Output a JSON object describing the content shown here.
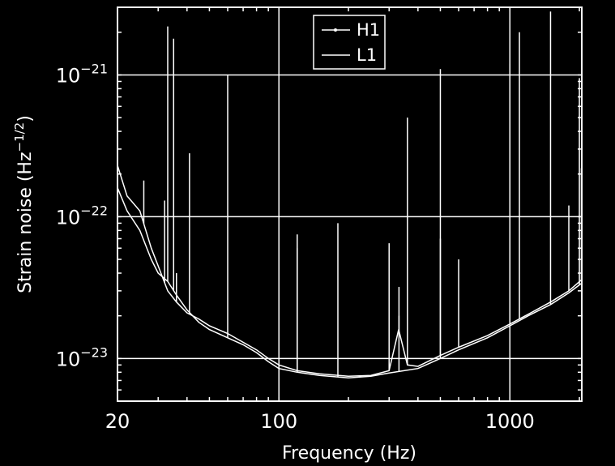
{
  "chart_data": {
    "type": "line",
    "title": "",
    "xlabel": "Frequency (Hz)",
    "ylabel_main": "Strain noise (Hz",
    "ylabel_sup": "−1/2",
    "ylabel_close": ")",
    "x_scale": "log",
    "y_scale": "log",
    "xlim": [
      20,
      2048
    ],
    "ylim": [
      5e-24,
      3e-21
    ],
    "grid": true,
    "legend_position": "top-center",
    "x_ticks": [
      {
        "value": 20,
        "label": "20"
      },
      {
        "value": 100,
        "label": "100"
      },
      {
        "value": 1000,
        "label": "1000"
      }
    ],
    "y_ticks": [
      {
        "value": 1e-23,
        "base": "10",
        "exp": "−23"
      },
      {
        "value": 1e-22,
        "base": "10",
        "exp": "−22"
      },
      {
        "value": 1e-21,
        "base": "10",
        "exp": "−21"
      }
    ],
    "series": [
      {
        "name": "H1",
        "marker": "point",
        "color": "#ffffff",
        "points": [
          [
            20,
            1.6e-22
          ],
          [
            22,
            1.1e-22
          ],
          [
            25,
            8e-23
          ],
          [
            28,
            5e-23
          ],
          [
            30,
            4e-23
          ],
          [
            33,
            3.5e-23
          ],
          [
            36,
            2.8e-23
          ],
          [
            40,
            2.2e-23
          ],
          [
            45,
            1.8e-23
          ],
          [
            50,
            1.6e-23
          ],
          [
            60,
            1.4e-23
          ],
          [
            70,
            1.25e-23
          ],
          [
            80,
            1.1e-23
          ],
          [
            90,
            9.5e-24
          ],
          [
            100,
            8.5e-24
          ],
          [
            120,
            8e-24
          ],
          [
            150,
            7.6e-24
          ],
          [
            200,
            7.3e-24
          ],
          [
            250,
            7.5e-24
          ],
          [
            300,
            7.9e-24
          ],
          [
            400,
            8.5e-24
          ],
          [
            500,
            1e-23
          ],
          [
            600,
            1.15e-23
          ],
          [
            800,
            1.4e-23
          ],
          [
            1000,
            1.7e-23
          ],
          [
            1200,
            2e-23
          ],
          [
            1500,
            2.4e-23
          ],
          [
            1800,
            2.9e-23
          ],
          [
            2048,
            3.4e-23
          ]
        ],
        "lines": [
          [
            33,
            2.2e-21
          ],
          [
            35,
            1.8e-21
          ],
          [
            60,
            1e-21
          ],
          [
            120,
            7.5e-23
          ],
          [
            180,
            9e-23
          ],
          [
            331,
            2e-23
          ],
          [
            500,
            1.1e-21
          ],
          [
            1000,
            1.2e-21
          ],
          [
            1500,
            2.8e-21
          ],
          [
            2000,
            9.5e-22
          ]
        ]
      },
      {
        "name": "L1",
        "marker": "",
        "color": "#ffffff",
        "points": [
          [
            20,
            2.3e-22
          ],
          [
            22,
            1.4e-22
          ],
          [
            25,
            1.1e-22
          ],
          [
            28,
            6e-23
          ],
          [
            30,
            4.5e-23
          ],
          [
            33,
            3e-23
          ],
          [
            36,
            2.5e-23
          ],
          [
            40,
            2.1e-23
          ],
          [
            45,
            1.9e-23
          ],
          [
            50,
            1.7e-23
          ],
          [
            60,
            1.5e-23
          ],
          [
            70,
            1.3e-23
          ],
          [
            80,
            1.15e-23
          ],
          [
            90,
            1e-23
          ],
          [
            100,
            9e-24
          ],
          [
            120,
            8.2e-24
          ],
          [
            150,
            7.8e-24
          ],
          [
            200,
            7.5e-24
          ],
          [
            250,
            7.6e-24
          ],
          [
            300,
            8.2e-24
          ],
          [
            330,
            1.6e-23
          ],
          [
            360,
            9e-24
          ],
          [
            400,
            8.8e-24
          ],
          [
            500,
            1.05e-23
          ],
          [
            600,
            1.2e-23
          ],
          [
            800,
            1.45e-23
          ],
          [
            1000,
            1.75e-23
          ],
          [
            1200,
            2.05e-23
          ],
          [
            1500,
            2.5e-23
          ],
          [
            1800,
            3e-23
          ],
          [
            2048,
            3.6e-23
          ]
        ],
        "lines": [
          [
            26,
            1.8e-22
          ],
          [
            32,
            1.3e-22
          ],
          [
            36,
            4e-23
          ],
          [
            41,
            2.8e-22
          ],
          [
            120,
            6e-23
          ],
          [
            300,
            6.5e-23
          ],
          [
            331,
            3.2e-23
          ],
          [
            360,
            5e-22
          ],
          [
            500,
            7e-23
          ],
          [
            600,
            5e-23
          ],
          [
            1100,
            2e-21
          ],
          [
            1800,
            1.2e-22
          ],
          [
            2040,
            2.2e-22
          ]
        ]
      }
    ]
  }
}
